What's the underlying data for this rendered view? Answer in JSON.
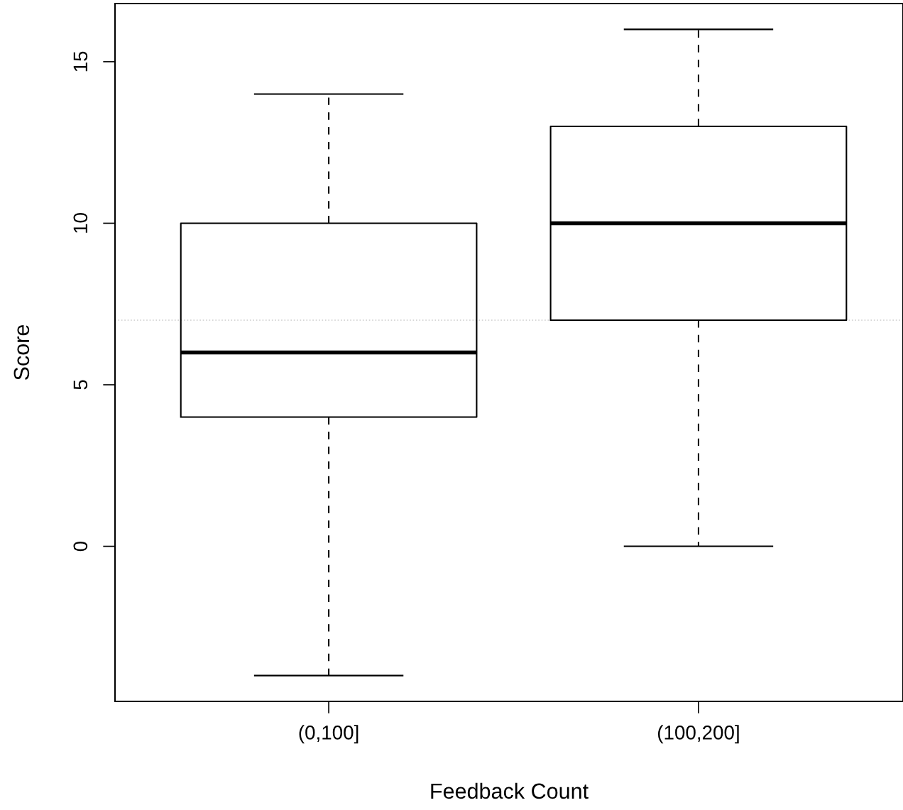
{
  "chart_data": {
    "type": "box",
    "xlabel": "Feedback Count",
    "ylabel": "Score",
    "categories": [
      "(0,100]",
      "(100,200]"
    ],
    "boxes": [
      {
        "low": -4,
        "q1": 4,
        "median": 6,
        "q3": 10,
        "high": 14
      },
      {
        "low": 0,
        "q1": 7,
        "median": 10,
        "q3": 13,
        "high": 16
      }
    ],
    "ylim": [
      -4.8,
      16.8
    ],
    "yticks": [
      0,
      5,
      10,
      15
    ],
    "ref_lines": [
      {
        "axis": "y",
        "value": 7,
        "color": "#cccccc",
        "line_style": "dotted"
      }
    ],
    "grid": false
  }
}
